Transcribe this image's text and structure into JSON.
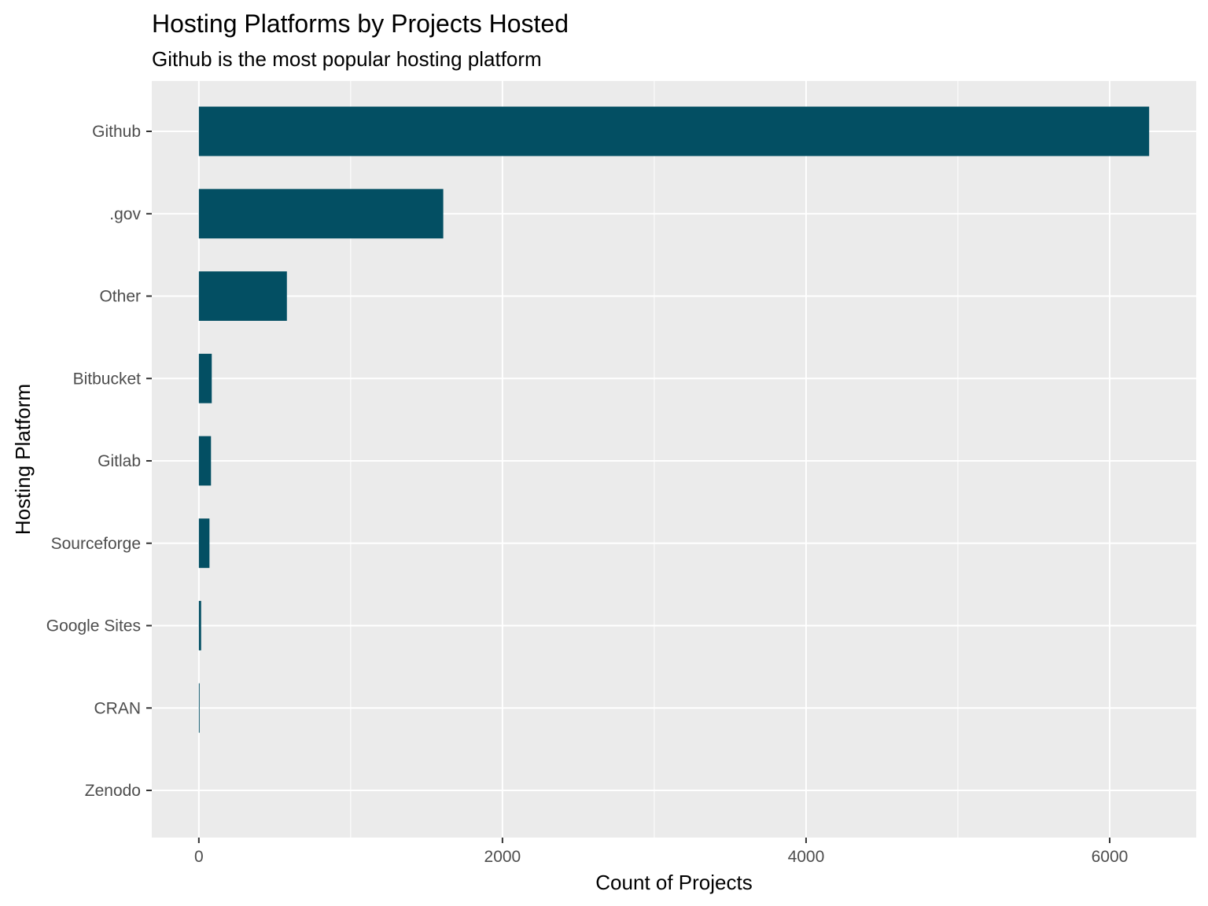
{
  "chart_data": {
    "type": "bar",
    "orientation": "horizontal",
    "title": "Hosting Platforms by Projects Hosted",
    "subtitle": "Github is the most popular hosting platform",
    "xlabel": "Count of Projects",
    "ylabel": "Hosting Platform",
    "categories": [
      "Github",
      ".gov",
      "Other",
      "Bitbucket",
      "Gitlab",
      "Sourceforge",
      "Google Sites",
      "CRAN",
      "Zenodo"
    ],
    "values": [
      6260,
      1610,
      580,
      85,
      80,
      70,
      15,
      5,
      0
    ],
    "xlim": [
      -310,
      6570
    ],
    "x_ticks": [
      0,
      2000,
      4000,
      6000
    ],
    "x_tick_labels": [
      "0",
      "2000",
      "4000",
      "6000"
    ],
    "bar_color": "#034f63",
    "panel_color": "#ebebeb",
    "grid": true,
    "legend": "none"
  }
}
